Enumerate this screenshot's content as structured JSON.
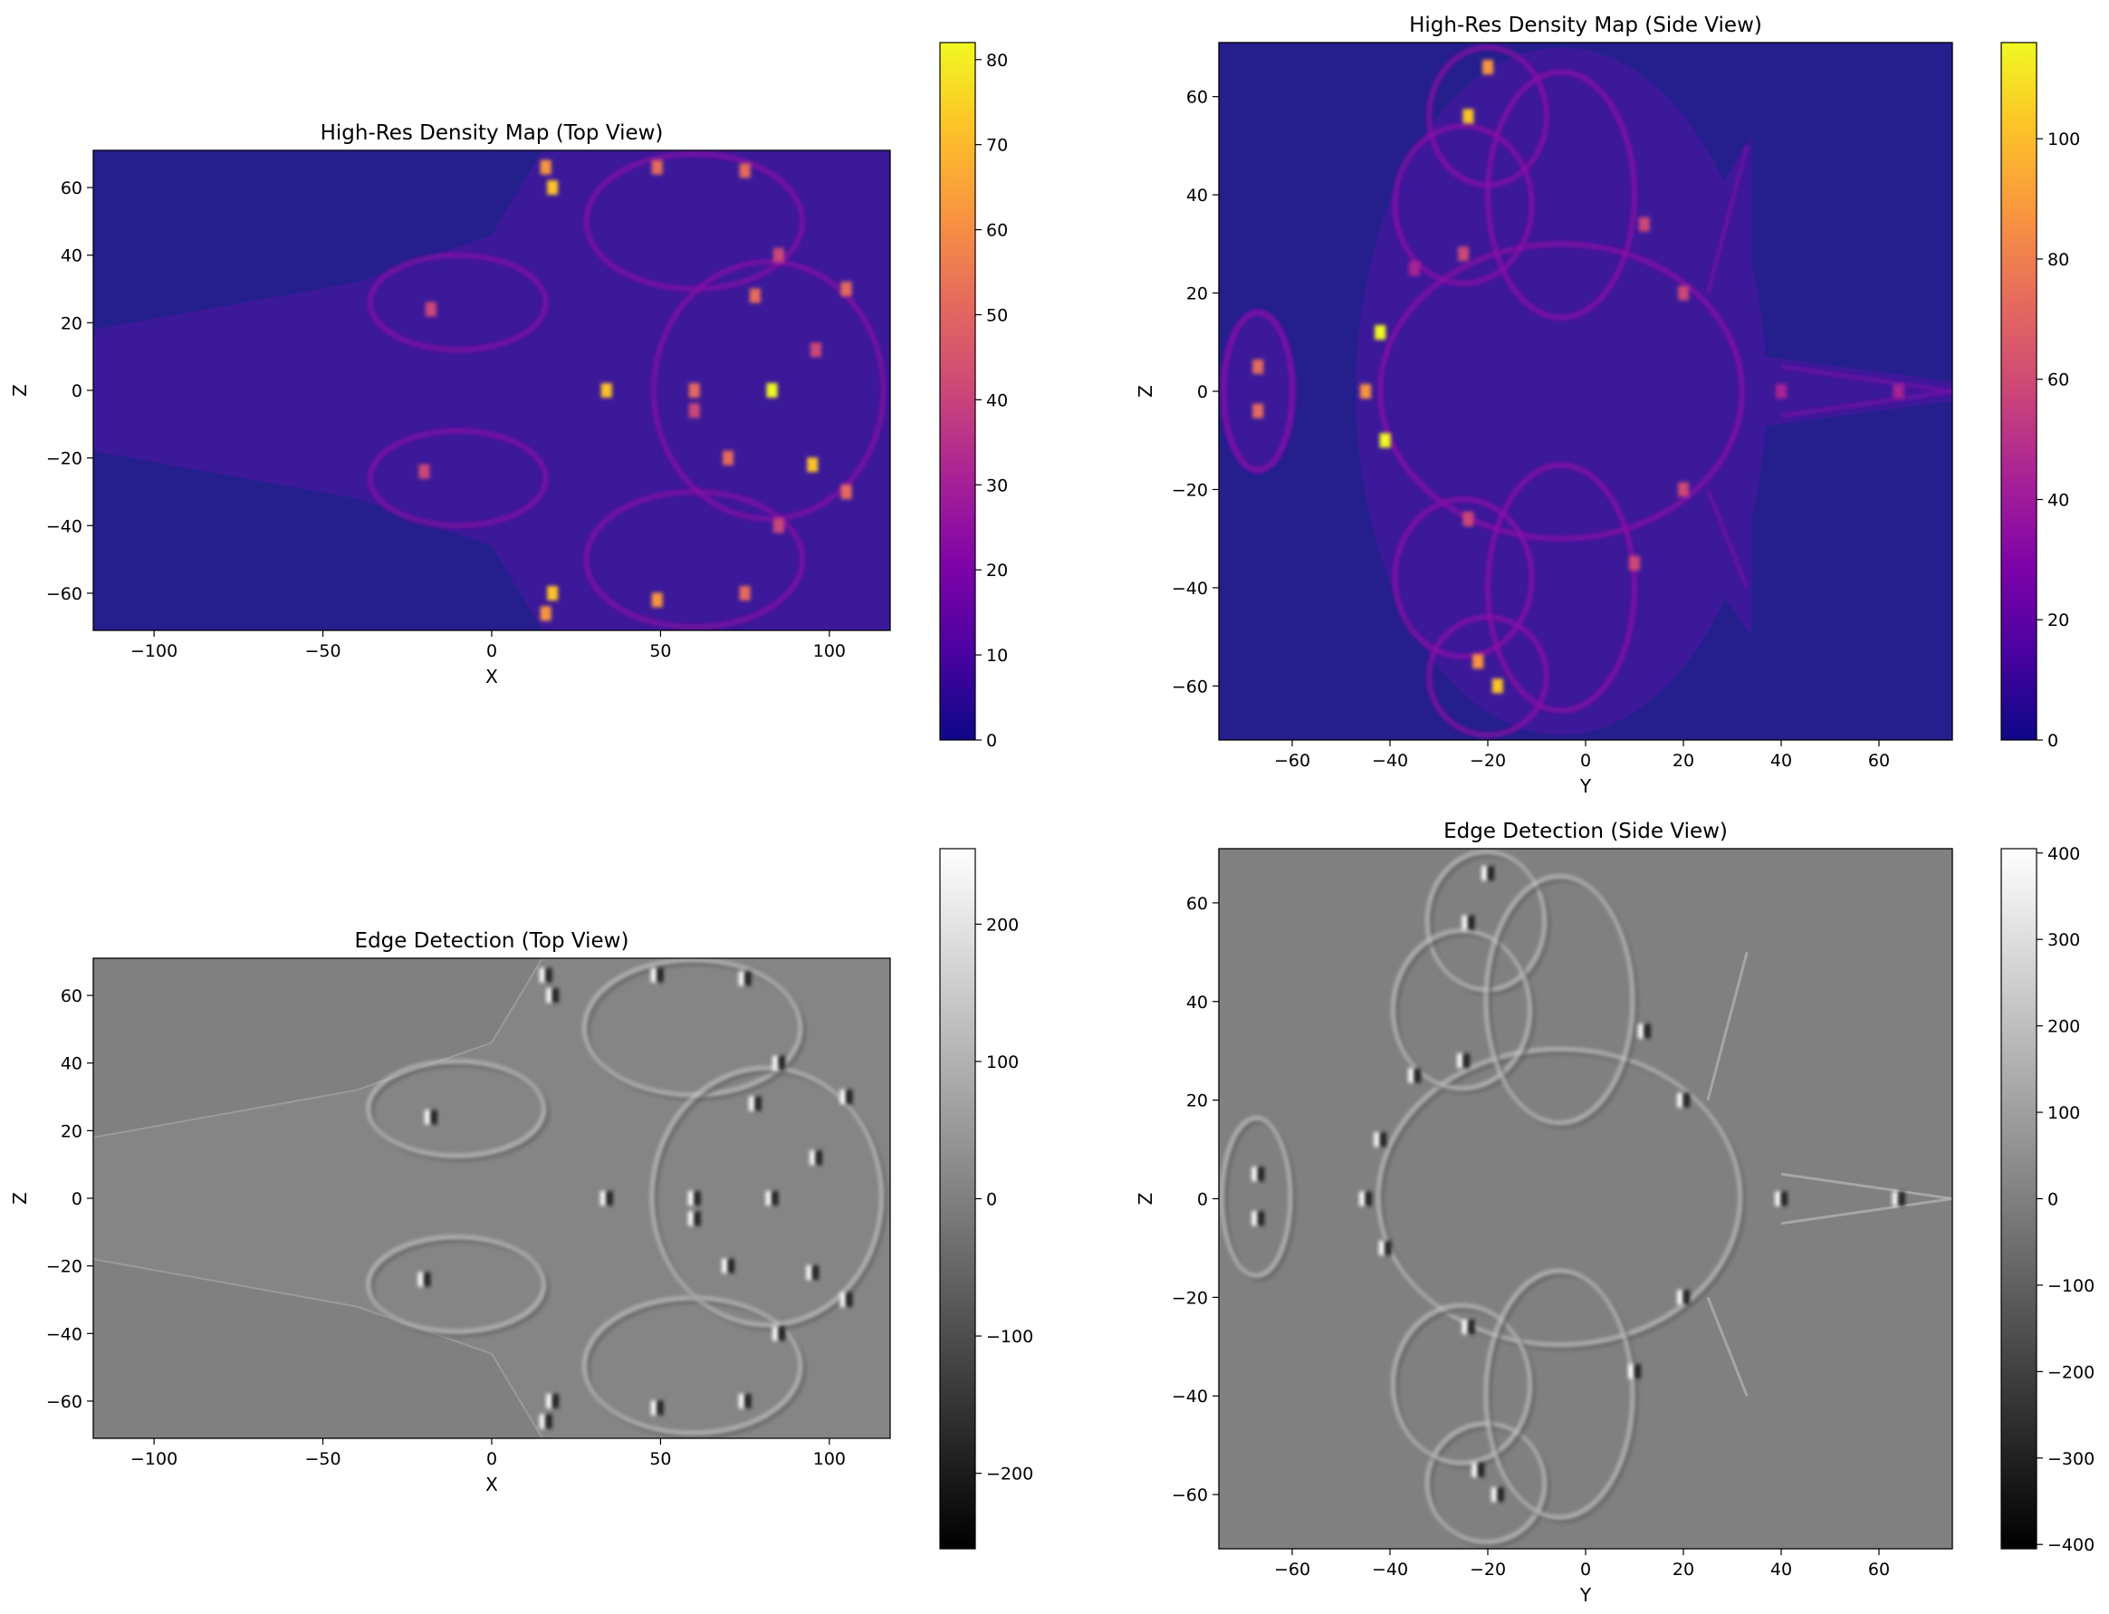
{
  "chart_data": [
    {
      "type": "heatmap",
      "title": "High-Res Density Map (Top View)",
      "xlabel": "X",
      "ylabel": "Z",
      "xlim": [
        -118,
        118
      ],
      "ylim": [
        -71,
        71
      ],
      "xticks": [
        -100,
        -50,
        0,
        50,
        100
      ],
      "yticks": [
        -60,
        -40,
        -20,
        0,
        20,
        40,
        60
      ],
      "colormap": "plasma",
      "colorbar": {
        "min": 0,
        "max": 82,
        "ticks": [
          0,
          10,
          20,
          30,
          40,
          50,
          60,
          70,
          80
        ]
      },
      "background_value": 0,
      "features": {
        "body": [
          [
            -118,
            -18,
            18
          ],
          [
            -40,
            -32,
            32
          ],
          [
            0,
            -46,
            46
          ],
          [
            15,
            -71,
            71
          ],
          [
            118,
            -71,
            71
          ]
        ],
        "background_color": "#241f8c",
        "body_color": "#3b1999",
        "lobes": [
          [
            -10,
            26,
            26,
            14
          ],
          [
            -10,
            -26,
            26,
            14
          ],
          [
            60,
            50,
            32,
            20
          ],
          [
            60,
            -50,
            32,
            20
          ],
          [
            82,
            0,
            34,
            38
          ]
        ],
        "hotspots": [
          [
            16,
            66,
            60
          ],
          [
            18,
            60,
            75
          ],
          [
            18,
            -60,
            75
          ],
          [
            16,
            -66,
            60
          ],
          [
            49,
            66,
            55
          ],
          [
            49,
            -62,
            60
          ],
          [
            34,
            0,
            70
          ],
          [
            83,
            0,
            80
          ],
          [
            95,
            -22,
            70
          ],
          [
            78,
            28,
            55
          ],
          [
            70,
            -20,
            50
          ],
          [
            60,
            -6,
            45
          ],
          [
            75,
            65,
            55
          ],
          [
            75,
            -60,
            50
          ],
          [
            105,
            30,
            50
          ],
          [
            105,
            -30,
            50
          ],
          [
            -18,
            24,
            45
          ],
          [
            -20,
            -24,
            45
          ],
          [
            96,
            12,
            40
          ],
          [
            85,
            40,
            40
          ],
          [
            85,
            -40,
            40
          ],
          [
            60,
            0,
            55
          ]
        ]
      }
    },
    {
      "type": "heatmap",
      "title": "High-Res Density Map (Side View)",
      "xlabel": "Y",
      "ylabel": "Z",
      "xlim": [
        -75,
        75
      ],
      "ylim": [
        -71,
        71
      ],
      "xticks": [
        -60,
        -40,
        -20,
        0,
        20,
        40,
        60
      ],
      "yticks": [
        -60,
        -40,
        -20,
        0,
        20,
        40,
        60
      ],
      "colormap": "plasma",
      "colorbar": {
        "min": 0,
        "max": 116,
        "ticks": [
          0,
          20,
          40,
          60,
          80,
          100
        ]
      },
      "background_value": 0,
      "features": {
        "background_color": "#241f8c",
        "body_color": "#3b1999",
        "rings": [
          [
            -5,
            0,
            37,
            30
          ],
          [
            -20,
            56,
            12,
            14
          ],
          [
            -20,
            -58,
            12,
            12
          ],
          [
            -67,
            0,
            7,
            16
          ],
          [
            -25,
            38,
            14,
            16
          ],
          [
            -25,
            -38,
            14,
            16
          ],
          [
            -5,
            40,
            15,
            25
          ],
          [
            -5,
            -40,
            15,
            25
          ]
        ],
        "hotspots": [
          [
            -24,
            56,
            100
          ],
          [
            -20,
            66,
            90
          ],
          [
            -42,
            12,
            110
          ],
          [
            -41,
            -10,
            110
          ],
          [
            -22,
            -55,
            90
          ],
          [
            -18,
            -60,
            100
          ],
          [
            -67,
            5,
            70
          ],
          [
            -67,
            -4,
            70
          ],
          [
            -45,
            0,
            80
          ],
          [
            -25,
            28,
            60
          ],
          [
            -24,
            -26,
            60
          ],
          [
            12,
            34,
            60
          ],
          [
            10,
            -35,
            55
          ],
          [
            20,
            20,
            55
          ],
          [
            20,
            -20,
            55
          ],
          [
            40,
            0,
            40
          ],
          [
            64,
            0,
            45
          ],
          [
            -35,
            25,
            50
          ]
        ],
        "streaks": [
          [
            25,
            20,
            33,
            50
          ],
          [
            25,
            -20,
            33,
            -40
          ],
          [
            40,
            5,
            75,
            0
          ],
          [
            40,
            -5,
            75,
            0
          ]
        ]
      }
    },
    {
      "type": "heatmap",
      "title": "Edge Detection (Top View)",
      "xlabel": "X",
      "ylabel": "Z",
      "xlim": [
        -118,
        118
      ],
      "ylim": [
        -71,
        71
      ],
      "xticks": [
        -100,
        -50,
        0,
        50,
        100
      ],
      "yticks": [
        -60,
        -40,
        -20,
        0,
        20,
        40,
        60
      ],
      "colormap": "gray",
      "colorbar": {
        "min": -255,
        "max": 255,
        "ticks": [
          -200,
          -100,
          0,
          100,
          200
        ]
      },
      "background_value": 0
    },
    {
      "type": "heatmap",
      "title": "Edge Detection (Side View)",
      "xlabel": "Y",
      "ylabel": "Z",
      "xlim": [
        -75,
        75
      ],
      "ylim": [
        -71,
        71
      ],
      "xticks": [
        -60,
        -40,
        -20,
        0,
        20,
        40,
        60
      ],
      "yticks": [
        -60,
        -40,
        -20,
        0,
        20,
        40,
        60
      ],
      "colormap": "gray",
      "colorbar": {
        "min": -405,
        "max": 405,
        "ticks": [
          -400,
          -300,
          -200,
          -100,
          0,
          100,
          200,
          300,
          400
        ]
      },
      "background_value": 0
    }
  ]
}
